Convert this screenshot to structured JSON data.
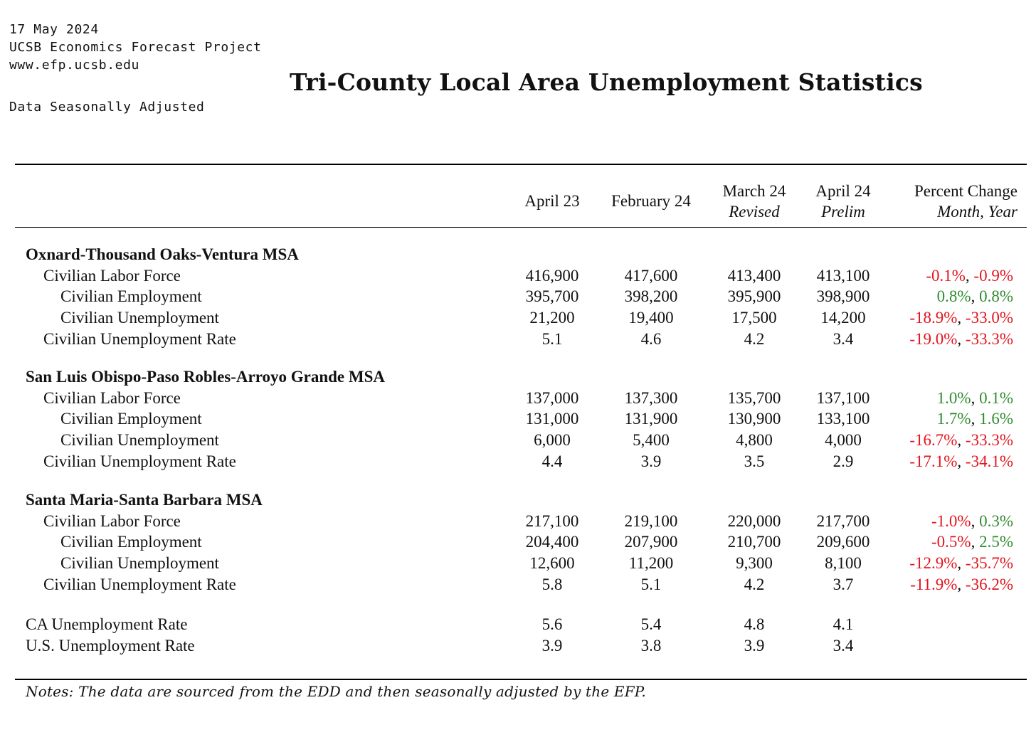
{
  "header": {
    "date": "17 May 2024",
    "org": "UCSB Economics Forecast Project",
    "url": "www.efp.ucsb.edu",
    "seasonal": "Data Seasonally Adjusted",
    "title": "Tri-County Local Area Unemployment Statistics"
  },
  "columns": {
    "c1": "April 23",
    "c2": "February 24",
    "c3": "March 24",
    "c3_sub": "Revised",
    "c4": "April 24",
    "c4_sub": "Prelim",
    "pct": "Percent Change",
    "pct_sub": "Month, Year"
  },
  "sections": [
    {
      "name": "Oxnard-Thousand Oaks-Ventura MSA",
      "rows": [
        {
          "label": "Civilian Labor Force",
          "v": [
            "416,900",
            "417,600",
            "413,400",
            "413,100"
          ],
          "month": "-0.1%",
          "year": "-0.9%"
        },
        {
          "label": "Civilian Employment",
          "v": [
            "395,700",
            "398,200",
            "395,900",
            "398,900"
          ],
          "month": "0.8%",
          "year": "0.8%"
        },
        {
          "label": "Civilian Unemployment",
          "v": [
            "21,200",
            "19,400",
            "17,500",
            "14,200"
          ],
          "month": "-18.9%",
          "year": "-33.0%"
        },
        {
          "label": "Civilian Unemployment Rate",
          "v": [
            "5.1",
            "4.6",
            "4.2",
            "3.4"
          ],
          "month": "-19.0%",
          "year": "-33.3%"
        }
      ]
    },
    {
      "name": "San Luis Obispo-Paso Robles-Arroyo Grande MSA",
      "rows": [
        {
          "label": "Civilian Labor Force",
          "v": [
            "137,000",
            "137,300",
            "135,700",
            "137,100"
          ],
          "month": "1.0%",
          "year": "0.1%"
        },
        {
          "label": "Civilian Employment",
          "v": [
            "131,000",
            "131,900",
            "130,900",
            "133,100"
          ],
          "month": "1.7%",
          "year": "1.6%"
        },
        {
          "label": "Civilian Unemployment",
          "v": [
            "6,000",
            "5,400",
            "4,800",
            "4,000"
          ],
          "month": "-16.7%",
          "year": "-33.3%"
        },
        {
          "label": "Civilian Unemployment Rate",
          "v": [
            "4.4",
            "3.9",
            "3.5",
            "2.9"
          ],
          "month": "-17.1%",
          "year": "-34.1%"
        }
      ]
    },
    {
      "name": "Santa Maria-Santa Barbara MSA",
      "rows": [
        {
          "label": "Civilian Labor Force",
          "v": [
            "217,100",
            "219,100",
            "220,000",
            "217,700"
          ],
          "month": "-1.0%",
          "year": "0.3%"
        },
        {
          "label": "Civilian Employment",
          "v": [
            "204,400",
            "207,900",
            "210,700",
            "209,600"
          ],
          "month": "-0.5%",
          "year": "2.5%"
        },
        {
          "label": "Civilian Unemployment",
          "v": [
            "12,600",
            "11,200",
            "9,300",
            "8,100"
          ],
          "month": "-12.9%",
          "year": "-35.7%"
        },
        {
          "label": "Civilian Unemployment Rate",
          "v": [
            "5.8",
            "5.1",
            "4.2",
            "3.7"
          ],
          "month": "-11.9%",
          "year": "-36.2%"
        }
      ]
    }
  ],
  "totals": [
    {
      "label": "CA Unemployment Rate",
      "v": [
        "5.6",
        "5.4",
        "4.8",
        "4.1"
      ]
    },
    {
      "label": "U.S. Unemployment Rate",
      "v": [
        "3.9",
        "3.8",
        "3.9",
        "3.4"
      ]
    }
  ],
  "notes": "Notes: The data are sourced from the EDD and then seasonally adjusted by the EFP.",
  "colors": {
    "negative": "#e3141e",
    "positive": "#2e8b2e"
  }
}
